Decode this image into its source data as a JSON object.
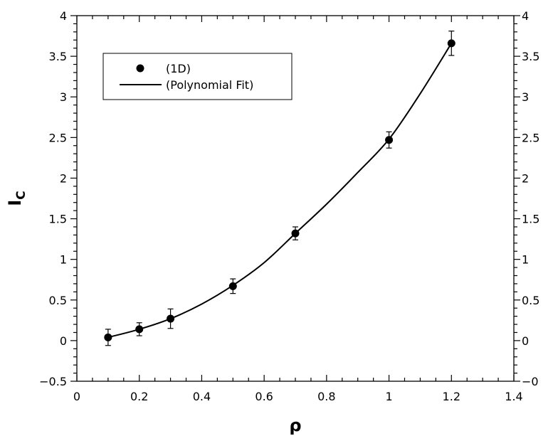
{
  "chart_data": {
    "type": "scatter",
    "xlabel": "ρ",
    "ylabel_main": "I",
    "ylabel_sub": "C",
    "xlim": [
      0,
      1.4
    ],
    "ylim": [
      -0.5,
      4
    ],
    "x_ticks": [
      "0",
      "0.2",
      "0.4",
      "0.6",
      "0.8",
      "1",
      "1.2",
      "1.4"
    ],
    "y_ticks": [
      "−0.5",
      "0",
      "0.5",
      "1",
      "1.5",
      "2",
      "2.5",
      "3",
      "3.5",
      "4"
    ],
    "y_ticks_right": [
      "−0",
      "0",
      "0.5",
      "1",
      "1.5",
      "2",
      "2.5",
      "3",
      "3.5",
      "4"
    ],
    "grid": false,
    "legend_position": "upper-left",
    "series": [
      {
        "name": "(1D)",
        "kind": "points",
        "x": [
          0.1,
          0.2,
          0.3,
          0.5,
          0.7,
          1.0,
          1.2
        ],
        "y": [
          0.04,
          0.14,
          0.27,
          0.67,
          1.32,
          2.47,
          3.66
        ],
        "err": [
          0.1,
          0.08,
          0.12,
          0.09,
          0.08,
          0.1,
          0.15
        ]
      },
      {
        "name": "(Polynomial Fit)",
        "kind": "line",
        "x": [
          0.1,
          0.2,
          0.3,
          0.4,
          0.5,
          0.6,
          0.7,
          0.8,
          0.9,
          1.0,
          1.1,
          1.2
        ],
        "y": [
          0.04,
          0.14,
          0.27,
          0.45,
          0.68,
          0.96,
          1.32,
          1.68,
          2.07,
          2.48,
          3.04,
          3.66
        ]
      }
    ]
  }
}
